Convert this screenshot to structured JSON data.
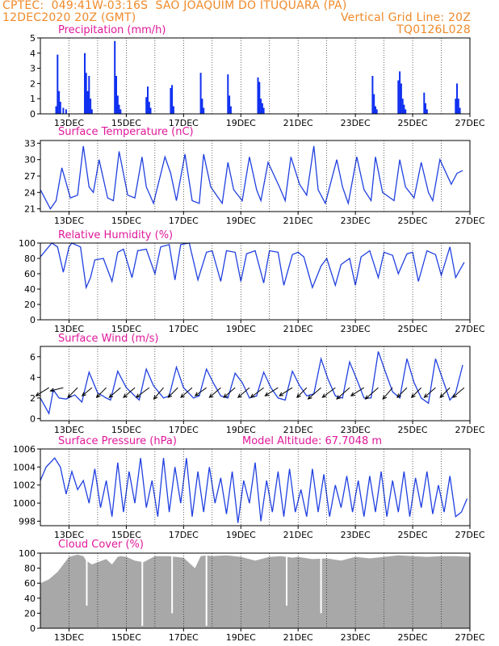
{
  "header": {
    "line1_left": "CPTEC:  049:41W-03:16S  SAO JOAQUIM DO ITUQUARA (PA)",
    "line2_left": "12DEC2020 20Z (GMT)",
    "line2_right": "Vertical Grid Line: 20Z",
    "line3_right": "TQ0126L028"
  },
  "x_ticks": [
    "13DEC",
    "15DEC",
    "17DEC",
    "19DEC",
    "21DEC",
    "23DEC",
    "25DEC",
    "27DEC"
  ],
  "colors": {
    "line": "#2040e0",
    "title": "#e0189a",
    "header": "#f08a2a",
    "cloud": "#a8a8a8",
    "bar": "#1030f0"
  },
  "chart_data": [
    {
      "type": "bar",
      "title": "Precipitation (mm/h)",
      "ylim": [
        0,
        5
      ],
      "yticks": [
        "0",
        "1",
        "2",
        "3",
        "4",
        "5"
      ],
      "x": [
        0.55,
        0.6,
        0.65,
        0.7,
        0.8,
        0.9,
        1.55,
        1.6,
        1.65,
        1.7,
        1.75,
        1.8,
        2.6,
        2.65,
        2.7,
        2.75,
        2.8,
        3.7,
        3.75,
        3.8,
        3.85,
        4.55,
        4.6,
        4.65,
        5.6,
        5.65,
        5.7,
        6.55,
        6.6,
        6.65,
        7.6,
        7.65,
        7.7,
        7.75,
        7.8,
        11.6,
        11.65,
        11.7,
        11.75,
        12.5,
        12.55,
        12.6,
        12.65,
        12.7,
        12.75,
        13.4,
        13.45,
        13.5,
        14.5,
        14.55,
        14.6,
        14.65
      ],
      "values": [
        0.5,
        3.9,
        1.5,
        0.8,
        0.4,
        0.3,
        4.0,
        2.7,
        1.5,
        2.5,
        1.0,
        0.3,
        4.8,
        2.5,
        1.2,
        0.6,
        0.3,
        1.1,
        1.8,
        0.8,
        0.4,
        1.7,
        1.9,
        0.5,
        2.7,
        1.0,
        0.4,
        2.6,
        1.2,
        0.5,
        2.4,
        2.1,
        1.0,
        0.7,
        0.4,
        2.5,
        1.3,
        0.5,
        0.3,
        2.2,
        2.8,
        2.0,
        1.0,
        0.6,
        0.3,
        1.4,
        0.7,
        0.3,
        1.0,
        2.0,
        1.0,
        0.4
      ]
    },
    {
      "type": "line",
      "title": "Surface Temperature (nC)",
      "ylim": [
        20.5,
        33.5
      ],
      "yticks": [
        "21",
        "24",
        "27",
        "30",
        "33"
      ],
      "x": [
        0,
        0.35,
        0.55,
        0.75,
        1.05,
        1.3,
        1.5,
        1.7,
        1.85,
        2.05,
        2.35,
        2.55,
        2.75,
        3.05,
        3.3,
        3.55,
        3.7,
        3.95,
        4.35,
        4.55,
        4.75,
        5.05,
        5.3,
        5.55,
        5.7,
        5.95,
        6.35,
        6.55,
        6.75,
        7.05,
        7.3,
        7.55,
        7.7,
        7.95,
        8.35,
        8.55,
        8.75,
        9.05,
        9.3,
        9.55,
        9.7,
        9.95,
        10.35,
        10.55,
        10.75,
        11.05,
        11.3,
        11.55,
        11.7,
        11.95,
        12.35,
        12.55,
        12.75,
        13.05,
        13.3,
        13.55,
        13.7,
        13.95,
        14.35,
        14.55,
        14.75
      ],
      "values": [
        24.5,
        21.0,
        22.5,
        28.5,
        23.0,
        23.5,
        32.5,
        25.0,
        24.0,
        30.0,
        23.0,
        22.5,
        31.5,
        23.5,
        23.0,
        30.5,
        25.0,
        22.0,
        30.5,
        27.5,
        22.5,
        31.0,
        22.5,
        22.0,
        31.0,
        25.0,
        22.0,
        29.5,
        24.5,
        22.5,
        30.5,
        24.5,
        22.5,
        29.5,
        25.0,
        22.5,
        30.5,
        25.5,
        23.5,
        32.5,
        24.5,
        22.0,
        30.0,
        25.0,
        22.0,
        30.5,
        24.5,
        22.5,
        30.5,
        24.0,
        22.5,
        30.0,
        25.0,
        23.0,
        29.5,
        24.0,
        22.5,
        30.0,
        25.5,
        27.5,
        28.0
      ]
    },
    {
      "type": "line",
      "title": "Relative Humidity (%)",
      "ylim": [
        0,
        100
      ],
      "yticks": [
        "0",
        "20",
        "40",
        "60",
        "80",
        "100"
      ],
      "x": [
        0,
        0.4,
        0.6,
        0.8,
        1.0,
        1.1,
        1.4,
        1.6,
        1.75,
        1.9,
        2.2,
        2.5,
        2.7,
        2.9,
        3.2,
        3.4,
        3.7,
        4.0,
        4.2,
        4.5,
        4.7,
        4.9,
        5.2,
        5.5,
        5.8,
        6.0,
        6.3,
        6.5,
        6.8,
        7.0,
        7.2,
        7.5,
        7.8,
        8.0,
        8.3,
        8.5,
        8.8,
        9.0,
        9.2,
        9.5,
        9.8,
        10.0,
        10.3,
        10.5,
        10.8,
        11.0,
        11.2,
        11.5,
        11.8,
        12.0,
        12.3,
        12.5,
        12.8,
        13.0,
        13.2,
        13.5,
        13.8,
        14.0,
        14.3,
        14.5,
        14.8
      ],
      "values": [
        82,
        100,
        95,
        62,
        95,
        100,
        95,
        42,
        55,
        78,
        80,
        50,
        88,
        92,
        55,
        90,
        92,
        60,
        95,
        98,
        52,
        98,
        100,
        52,
        88,
        90,
        50,
        90,
        88,
        50,
        86,
        90,
        48,
        90,
        88,
        45,
        85,
        88,
        82,
        42,
        70,
        80,
        45,
        72,
        80,
        45,
        82,
        90,
        55,
        88,
        84,
        60,
        86,
        88,
        50,
        90,
        85,
        58,
        95,
        55,
        75
      ]
    },
    {
      "type": "line",
      "title": "Surface Wind (m/s)",
      "ylim": [
        -0.2,
        7
      ],
      "yticks": [
        "0",
        "2",
        "4",
        "6"
      ],
      "x": [
        0,
        0.3,
        0.45,
        0.65,
        0.9,
        1.2,
        1.45,
        1.7,
        2.0,
        2.3,
        2.45,
        2.7,
        3.0,
        3.3,
        3.45,
        3.7,
        3.95,
        4.3,
        4.5,
        4.75,
        5.0,
        5.35,
        5.55,
        5.8,
        6.05,
        6.3,
        6.55,
        6.8,
        7.05,
        7.3,
        7.55,
        7.8,
        8.05,
        8.3,
        8.55,
        8.8,
        9.05,
        9.3,
        9.55,
        9.8,
        10.05,
        10.3,
        10.55,
        10.8,
        11.05,
        11.3,
        11.55,
        11.8,
        12.05,
        12.3,
        12.55,
        12.8,
        13.05,
        13.3,
        13.55,
        13.8,
        14.05,
        14.3,
        14.5,
        14.75
      ],
      "values": [
        2.0,
        0.5,
        2.8,
        2.0,
        1.9,
        2.3,
        1.6,
        4.5,
        2.5,
        2.0,
        1.8,
        4.6,
        3.0,
        2.2,
        1.8,
        4.8,
        3.2,
        2.0,
        2.2,
        5.0,
        3.0,
        2.0,
        2.2,
        4.8,
        3.4,
        2.2,
        2.0,
        4.4,
        3.5,
        2.0,
        2.2,
        4.5,
        3.0,
        2.0,
        1.8,
        4.6,
        3.2,
        2.2,
        2.4,
        5.8,
        3.8,
        2.2,
        2.0,
        5.5,
        3.8,
        2.0,
        2.0,
        6.5,
        4.5,
        2.6,
        2.0,
        5.8,
        3.5,
        2.0,
        1.5,
        5.8,
        3.8,
        1.8,
        2.5,
        5.2
      ]
    },
    {
      "type": "line",
      "title": "Surface Pressure (hPa)",
      "annotation": "Model Altitude: 67.7048 m",
      "ylim": [
        997.5,
        1006
      ],
      "yticks": [
        "998",
        "1000",
        "1002",
        "1004",
        "1006"
      ],
      "x": [
        0,
        0.2,
        0.5,
        0.7,
        0.9,
        1.1,
        1.3,
        1.5,
        1.7,
        1.9,
        2.1,
        2.3,
        2.5,
        2.7,
        2.9,
        3.1,
        3.3,
        3.5,
        3.7,
        3.9,
        4.1,
        4.3,
        4.5,
        4.7,
        4.9,
        5.1,
        5.3,
        5.5,
        5.7,
        5.9,
        6.1,
        6.3,
        6.5,
        6.7,
        6.9,
        7.1,
        7.3,
        7.5,
        7.7,
        7.9,
        8.1,
        8.3,
        8.5,
        8.7,
        8.9,
        9.1,
        9.3,
        9.5,
        9.7,
        9.9,
        10.1,
        10.3,
        10.5,
        10.7,
        10.9,
        11.1,
        11.3,
        11.5,
        11.7,
        11.9,
        12.1,
        12.3,
        12.5,
        12.7,
        12.9,
        13.1,
        13.3,
        13.5,
        13.7,
        13.9,
        14.1,
        14.3,
        14.5,
        14.7,
        14.9
      ],
      "values": [
        1002.5,
        1004.0,
        1005.0,
        1004.0,
        1001.0,
        1003.5,
        1001.5,
        1002.5,
        1000.0,
        1003.8,
        999.5,
        1002.5,
        998.5,
        1004.5,
        999.0,
        1003.5,
        1000.0,
        1005.0,
        999.5,
        1002.5,
        998.5,
        1005.0,
        999.0,
        1004.0,
        1000.0,
        1005.0,
        998.5,
        1003.5,
        999.0,
        1004.0,
        1000.0,
        1002.8,
        998.8,
        1003.5,
        997.8,
        1002.5,
        1000.0,
        1004.5,
        998.0,
        1002.5,
        999.0,
        1003.5,
        998.5,
        1003.8,
        999.0,
        1001.5,
        998.5,
        1003.8,
        999.0,
        1003.2,
        998.5,
        1002.0,
        999.5,
        1003.0,
        999.0,
        1002.5,
        998.5,
        1003.0,
        999.0,
        1003.5,
        998.5,
        1002.5,
        999.0,
        1003.5,
        998.5,
        1002.8,
        999.5,
        1003.5,
        998.8,
        1002.0,
        999.0,
        1003.0,
        998.5,
        999.0,
        1000.5
      ]
    },
    {
      "type": "area",
      "title": "Cloud Cover (%)",
      "ylim": [
        0,
        100
      ],
      "yticks": [
        "0",
        "20",
        "40",
        "60",
        "80",
        "100"
      ],
      "x": [
        0,
        0.3,
        0.6,
        1.0,
        1.3,
        1.5,
        1.6,
        1.8,
        2.0,
        2.3,
        2.5,
        2.7,
        2.8,
        3.0,
        3.3,
        3.6,
        4.0,
        4.5,
        5.0,
        5.4,
        5.6,
        5.8,
        6.0,
        6.5,
        7.0,
        7.5,
        8.0,
        8.4,
        8.6,
        8.8,
        9.0,
        9.5,
        10.0,
        10.5,
        11.0,
        11.5,
        12.0,
        12.5,
        13.0,
        13.5,
        14.0,
        14.5,
        15.0
      ],
      "values": [
        60,
        65,
        75,
        95,
        98,
        96,
        90,
        85,
        88,
        92,
        85,
        95,
        96,
        95,
        90,
        88,
        96,
        96,
        94,
        80,
        96,
        97,
        96,
        97,
        95,
        90,
        95,
        96,
        95,
        94,
        95,
        92,
        93,
        90,
        95,
        93,
        95,
        97,
        96,
        95,
        96,
        96,
        95
      ],
      "dips": [
        [
          1.62,
          30
        ],
        [
          3.56,
          3
        ],
        [
          4.6,
          20
        ],
        [
          5.8,
          3
        ],
        [
          8.6,
          30
        ],
        [
          9.8,
          20
        ]
      ]
    }
  ],
  "wind_vectors": {
    "x": [
      0.3,
      0.8,
      1.3,
      1.8,
      2.3,
      2.8,
      3.3,
      3.8,
      4.3,
      4.8,
      5.3,
      5.8,
      6.3,
      6.8,
      7.3,
      7.8,
      8.3,
      8.8,
      9.3,
      9.8,
      10.3,
      10.8,
      11.3,
      11.8,
      12.3,
      12.8,
      13.3,
      13.8,
      14.3,
      14.8
    ],
    "u": [
      -0.8,
      -0.8,
      -0.6,
      -0.6,
      -0.6,
      -0.7,
      -0.7,
      -0.8,
      -0.6,
      -0.6,
      -0.7,
      -0.7,
      -0.7,
      -0.7,
      -0.7,
      -0.8,
      -0.8,
      -0.8,
      -0.6,
      -0.8,
      -0.8,
      -0.8,
      -0.8,
      -0.8,
      -0.6,
      -0.6,
      -0.6,
      -0.7,
      -0.6,
      -0.7
    ],
    "v": [
      -0.5,
      -0.2,
      -0.6,
      -0.5,
      -0.6,
      -0.6,
      -0.6,
      -0.6,
      -0.7,
      -0.6,
      -0.6,
      -0.5,
      -0.6,
      -0.6,
      -0.6,
      -0.6,
      -0.5,
      -0.5,
      -0.6,
      -0.7,
      -0.6,
      -0.7,
      -0.5,
      -0.7,
      -0.7,
      -0.6,
      -0.6,
      -0.6,
      -0.6,
      -0.6
    ]
  }
}
